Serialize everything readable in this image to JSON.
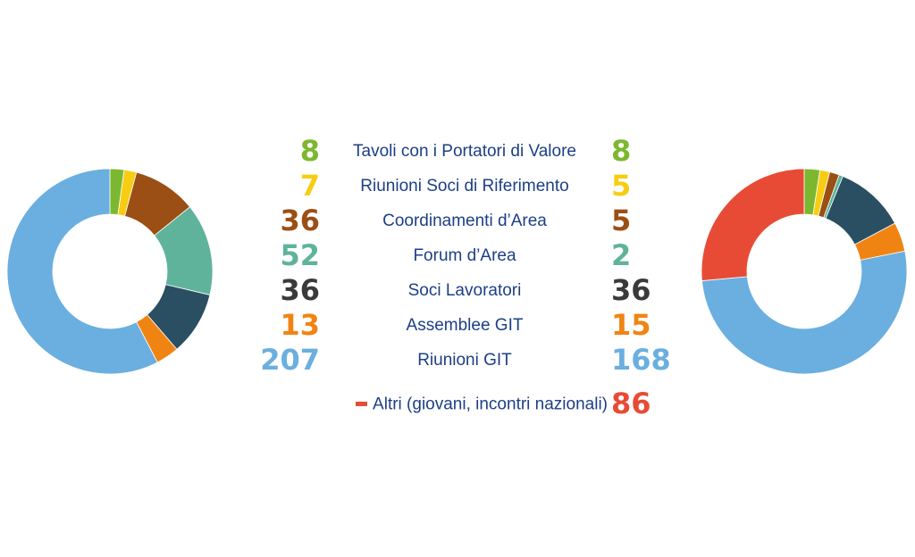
{
  "chart_data": [
    {
      "type": "pie",
      "donut": true,
      "title": "",
      "categories": [
        "Tavoli con i Portatori di Valore",
        "Riunioni Soci di Riferimento",
        "Coordinamenti d’Area",
        "Forum d’Area",
        "Soci Lavoratori",
        "Assemblee GIT",
        "Riunioni GIT"
      ],
      "values": [
        8,
        7,
        36,
        52,
        36,
        13,
        207
      ],
      "colors": [
        "#7cb82f",
        "#f7cd14",
        "#9b4f14",
        "#5fb39b",
        "#2a4f63",
        "#f08413",
        "#6aafe0"
      ]
    },
    {
      "type": "pie",
      "donut": true,
      "title": "",
      "categories": [
        "Tavoli con i Portatori di Valore",
        "Riunioni Soci di Riferimento",
        "Coordinamenti d’Area",
        "Forum d’Area",
        "Soci Lavoratori",
        "Assemblee GIT",
        "Riunioni GIT",
        "Altri (giovani, incontri nazionali)"
      ],
      "values": [
        8,
        5,
        5,
        2,
        36,
        15,
        168,
        86
      ],
      "colors": [
        "#7cb82f",
        "#f7cd14",
        "#9b4f14",
        "#5fb39b",
        "#2a4f63",
        "#f08413",
        "#6aafe0",
        "#e84b35"
      ]
    }
  ],
  "legend": {
    "rows": [
      {
        "left": "8",
        "label": "Tavoli con i Portatori di Valore",
        "right": "8",
        "color": "#7cb82f"
      },
      {
        "left": "7",
        "label": "Riunioni Soci di Riferimento",
        "right": "5",
        "color": "#f7cd14"
      },
      {
        "left": "36",
        "label": "Coordinamenti d’Area",
        "right": "5",
        "color": "#9b4f14"
      },
      {
        "left": "52",
        "label": "Forum d’Area",
        "right": "2",
        "color": "#5fb39b"
      },
      {
        "left": "36",
        "label": "Soci Lavoratori",
        "right": "36",
        "color": "#3a3a3a"
      },
      {
        "left": "13",
        "label": "Assemblee GIT",
        "right": "15",
        "color": "#f08413"
      },
      {
        "left": "207",
        "label": "Riunioni GIT",
        "right": "168",
        "color": "#6aafe0"
      }
    ],
    "extra": {
      "label": "Altri (giovani, incontri nazionali)",
      "right": "86",
      "color": "#e84b35"
    }
  }
}
